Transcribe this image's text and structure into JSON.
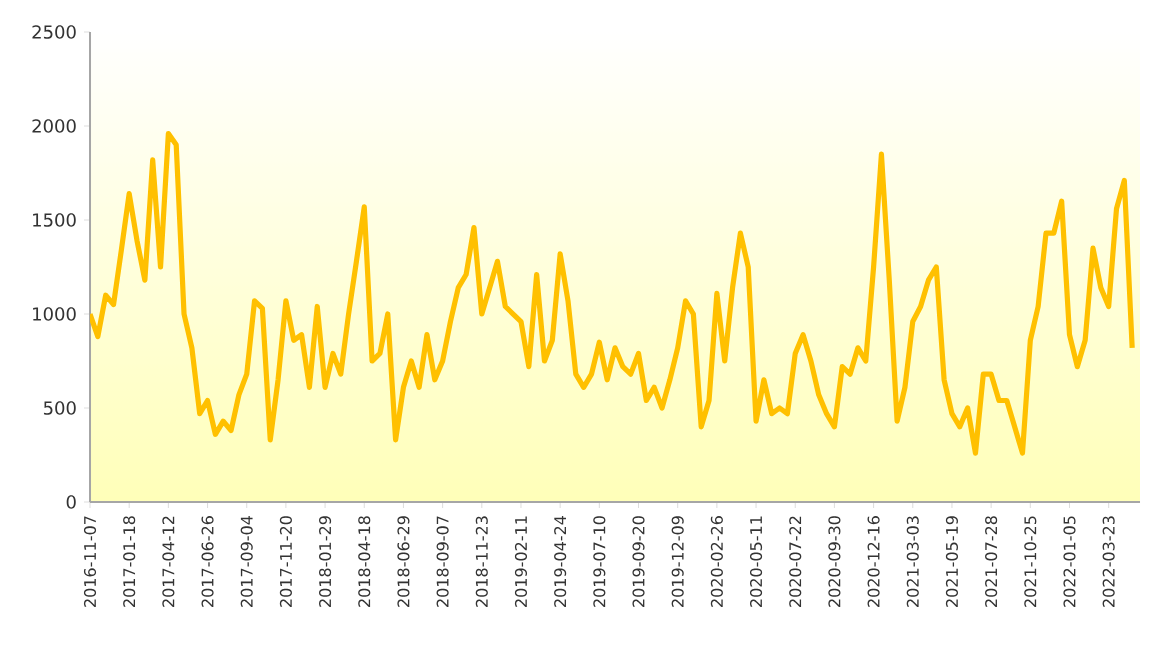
{
  "chart_data": {
    "type": "line",
    "color": "#ffc000",
    "ylim": [
      0,
      2500
    ],
    "yticks": [
      0,
      500,
      1000,
      1500,
      2000,
      2500
    ],
    "grid": false,
    "marker": "none",
    "categories": [
      "2016-11-07",
      null,
      null,
      null,
      null,
      "2017-01-18",
      null,
      null,
      null,
      null,
      "2017-04-12",
      null,
      null,
      null,
      null,
      "2017-06-26",
      null,
      null,
      null,
      null,
      "2017-09-04",
      null,
      null,
      null,
      null,
      "2017-11-20",
      null,
      null,
      null,
      null,
      "2018-01-29",
      null,
      null,
      null,
      null,
      "2018-04-18",
      null,
      null,
      null,
      null,
      "2018-06-29",
      null,
      null,
      null,
      null,
      "2018-09-07",
      null,
      null,
      null,
      null,
      "2018-11-23",
      null,
      null,
      null,
      null,
      "2019-02-11",
      null,
      null,
      null,
      null,
      "2019-04-24",
      null,
      null,
      null,
      null,
      "2019-07-10",
      null,
      null,
      null,
      null,
      "2019-09-20",
      null,
      null,
      null,
      null,
      "2019-12-09",
      null,
      null,
      null,
      null,
      "2020-02-26",
      null,
      null,
      null,
      null,
      "2020-05-11",
      null,
      null,
      null,
      null,
      "2020-07-22",
      null,
      null,
      null,
      null,
      "2020-09-30",
      null,
      null,
      null,
      null,
      "2020-12-16",
      null,
      null,
      null,
      null,
      "2021-03-03",
      null,
      null,
      null,
      null,
      "2021-05-19",
      null,
      null,
      null,
      null,
      "2021-07-28",
      null,
      null,
      null,
      null,
      "2021-10-25",
      null,
      null,
      null,
      null,
      "2022-01-05",
      null,
      null,
      null,
      null,
      "2022-03-23",
      null,
      null,
      null
    ],
    "values": [
      1000,
      880,
      1100,
      1050,
      1340,
      1640,
      1390,
      1180,
      1820,
      1250,
      1960,
      1900,
      1000,
      820,
      470,
      540,
      360,
      430,
      380,
      570,
      680,
      1070,
      1030,
      330,
      650,
      1070,
      860,
      890,
      610,
      1040,
      610,
      790,
      680,
      1000,
      1280,
      1570,
      750,
      790,
      1000,
      330,
      610,
      750,
      610,
      890,
      650,
      750,
      960,
      1140,
      1210,
      1460,
      1000,
      1140,
      1280,
      1040,
      1000,
      960,
      720,
      1210,
      750,
      860,
      1320,
      1070,
      680,
      610,
      680,
      850,
      650,
      820,
      720,
      680,
      790,
      540,
      610,
      500,
      650,
      820,
      1070,
      1000,
      400,
      540,
      1110,
      750,
      1140,
      1430,
      1250,
      430,
      650,
      470,
      500,
      470,
      790,
      890,
      750,
      570,
      470,
      400,
      720,
      680,
      820,
      750,
      1250,
      1850,
      1180,
      430,
      610,
      960,
      1040,
      1180,
      1250,
      650,
      470,
      400,
      500,
      260,
      680,
      680,
      540,
      540,
      400,
      260,
      860,
      1040,
      1430,
      1430,
      1600,
      890,
      720,
      860,
      1350,
      1140,
      1040,
      1560,
      1710,
      820
    ]
  }
}
